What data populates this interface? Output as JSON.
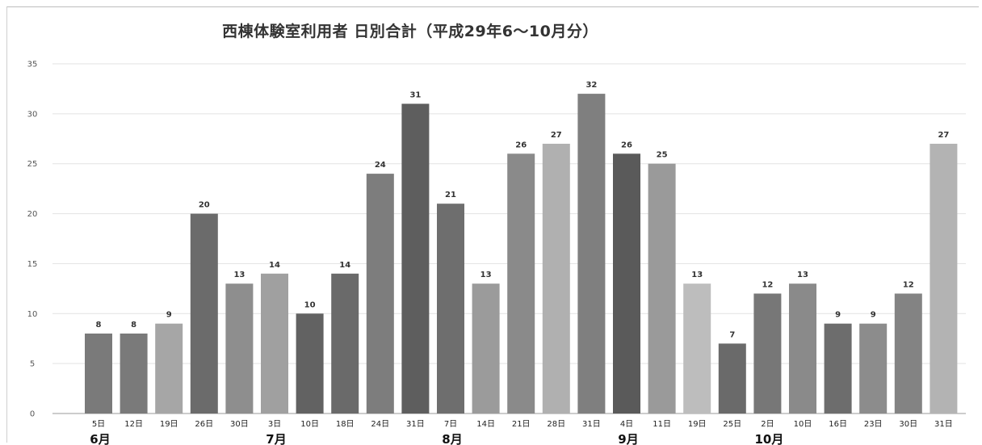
{
  "chart_data": {
    "type": "bar",
    "title": "西棟体験室利用者 日別合計（平成29年6～10月分）",
    "xlabel": "",
    "ylabel": "",
    "ylim": [
      0,
      35
    ],
    "yticks": [
      "0",
      "5",
      "10",
      "15",
      "20",
      "25",
      "30",
      "35"
    ],
    "grid": true,
    "categories": [
      "5日",
      "12日",
      "19日",
      "26日",
      "30日",
      "3日",
      "10日",
      "18日",
      "24日",
      "31日",
      "7日",
      "14日",
      "21日",
      "28日",
      "31日",
      "4日",
      "11日",
      "19日",
      "25日",
      "2日",
      "10日",
      "16日",
      "23日",
      "30日",
      "31日"
    ],
    "values": [
      8,
      8,
      9,
      20,
      13,
      14,
      10,
      14,
      24,
      31,
      21,
      13,
      26,
      27,
      32,
      26,
      25,
      13,
      7,
      12,
      13,
      9,
      9,
      12,
      27
    ],
    "bar_colors": [
      "#7a7a7a",
      "#7a7a7a",
      "#a6a6a6",
      "#6b6b6b",
      "#8e8e8e",
      "#a0a0a0",
      "#626262",
      "#6a6a6a",
      "#7d7d7d",
      "#5e5e5e",
      "#6e6e6e",
      "#9b9b9b",
      "#8a8a8a",
      "#b0b0b0",
      "#7f7f7f",
      "#5a5a5a",
      "#9a9a9a",
      "#bdbdbd",
      "#6a6a6a",
      "#777777",
      "#8a8a8a",
      "#6d6d6d",
      "#8c8c8c",
      "#838383",
      "#b3b3b3"
    ],
    "months": [
      {
        "label": "6月",
        "index": 0
      },
      {
        "label": "7月",
        "index": 5
      },
      {
        "label": "8月",
        "index": 10
      },
      {
        "label": "9月",
        "index": 15
      },
      {
        "label": "10月",
        "index": 19
      }
    ]
  }
}
